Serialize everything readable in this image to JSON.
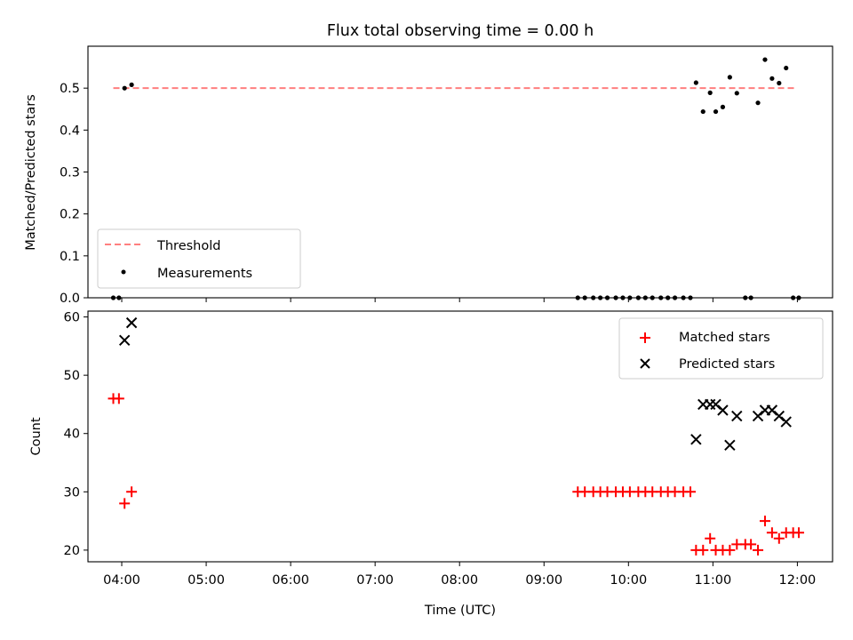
{
  "chart_data": [
    {
      "type": "scatter",
      "title": "Flux total observing time = 0.00 h",
      "ylabel": "Matched/Predicted stars",
      "xlabel": "",
      "ylim": [
        0,
        0.6
      ],
      "yticks": [
        0.0,
        0.1,
        0.2,
        0.3,
        0.4,
        0.5
      ],
      "xlim": [
        "03:36",
        "12:25"
      ],
      "legend": {
        "placement": "lower-left",
        "entries": [
          "Threshold",
          "Measurements"
        ]
      },
      "colors": {
        "threshold": "#ff7f7f",
        "measurements": "#000000"
      },
      "threshold": {
        "name": "Threshold",
        "value": 0.5,
        "x_start": "03:54",
        "x_end": "12:00"
      },
      "series": [
        {
          "name": "Measurements",
          "points": [
            [
              "03:54",
              0.0
            ],
            [
              "03:58",
              0.0
            ],
            [
              "04:02",
              0.5
            ],
            [
              "04:07",
              0.508
            ],
            [
              "09:24",
              0.0
            ],
            [
              "09:29",
              0.0
            ],
            [
              "09:35",
              0.0
            ],
            [
              "09:40",
              0.0
            ],
            [
              "09:45",
              0.0
            ],
            [
              "09:51",
              0.0
            ],
            [
              "09:56",
              0.0
            ],
            [
              "10:01",
              0.0
            ],
            [
              "10:07",
              0.0
            ],
            [
              "10:12",
              0.0
            ],
            [
              "10:17",
              0.0
            ],
            [
              "10:23",
              0.0
            ],
            [
              "10:28",
              0.0
            ],
            [
              "10:33",
              0.0
            ],
            [
              "10:39",
              0.0
            ],
            [
              "10:44",
              0.0
            ],
            [
              "10:48",
              0.513
            ],
            [
              "10:53",
              0.444
            ],
            [
              "10:58",
              0.489
            ],
            [
              "11:02",
              0.444
            ],
            [
              "11:07",
              0.455
            ],
            [
              "11:12",
              0.526
            ],
            [
              "11:17",
              0.488
            ],
            [
              "11:23",
              0.0
            ],
            [
              "11:27",
              0.0
            ],
            [
              "11:32",
              0.465
            ],
            [
              "11:37",
              0.568
            ],
            [
              "11:42",
              0.523
            ],
            [
              "11:47",
              0.512
            ],
            [
              "11:52",
              0.548
            ],
            [
              "11:57",
              0.0
            ],
            [
              "12:01",
              0.0
            ]
          ]
        }
      ]
    },
    {
      "type": "scatter",
      "title": "",
      "ylabel": "Count",
      "xlabel": "Time (UTC)",
      "ylim": [
        18,
        61
      ],
      "yticks": [
        20,
        30,
        40,
        50,
        60
      ],
      "xlim": [
        "03:36",
        "12:25"
      ],
      "xticks": [
        "04:00",
        "05:00",
        "06:00",
        "07:00",
        "08:00",
        "09:00",
        "10:00",
        "11:00",
        "12:00"
      ],
      "legend": {
        "placement": "top-right",
        "entries": [
          "Matched stars",
          "Predicted stars"
        ]
      },
      "colors": {
        "matched": "#ff0000",
        "predicted": "#000000"
      },
      "series": [
        {
          "name": "Matched stars",
          "marker": "plus",
          "points": [
            [
              "03:54",
              46
            ],
            [
              "03:58",
              46
            ],
            [
              "04:02",
              28
            ],
            [
              "04:07",
              30
            ],
            [
              "09:24",
              30
            ],
            [
              "09:29",
              30
            ],
            [
              "09:35",
              30
            ],
            [
              "09:40",
              30
            ],
            [
              "09:45",
              30
            ],
            [
              "09:51",
              30
            ],
            [
              "09:56",
              30
            ],
            [
              "10:01",
              30
            ],
            [
              "10:07",
              30
            ],
            [
              "10:12",
              30
            ],
            [
              "10:17",
              30
            ],
            [
              "10:23",
              30
            ],
            [
              "10:28",
              30
            ],
            [
              "10:33",
              30
            ],
            [
              "10:39",
              30
            ],
            [
              "10:44",
              30
            ],
            [
              "10:48",
              20
            ],
            [
              "10:53",
              20
            ],
            [
              "10:58",
              22
            ],
            [
              "11:02",
              20
            ],
            [
              "11:07",
              20
            ],
            [
              "11:12",
              20
            ],
            [
              "11:17",
              21
            ],
            [
              "11:23",
              21
            ],
            [
              "11:27",
              21
            ],
            [
              "11:32",
              20
            ],
            [
              "11:37",
              25
            ],
            [
              "11:42",
              23
            ],
            [
              "11:47",
              22
            ],
            [
              "11:52",
              23
            ],
            [
              "11:57",
              23
            ],
            [
              "12:01",
              23
            ]
          ]
        },
        {
          "name": "Predicted stars",
          "marker": "x",
          "points": [
            [
              "04:02",
              56
            ],
            [
              "04:07",
              59
            ],
            [
              "10:48",
              39
            ],
            [
              "10:53",
              45
            ],
            [
              "10:58",
              45
            ],
            [
              "11:02",
              45
            ],
            [
              "11:07",
              44
            ],
            [
              "11:12",
              38
            ],
            [
              "11:17",
              43
            ],
            [
              "11:32",
              43
            ],
            [
              "11:37",
              44
            ],
            [
              "11:42",
              44
            ],
            [
              "11:47",
              43
            ],
            [
              "11:52",
              42
            ]
          ]
        }
      ]
    }
  ]
}
